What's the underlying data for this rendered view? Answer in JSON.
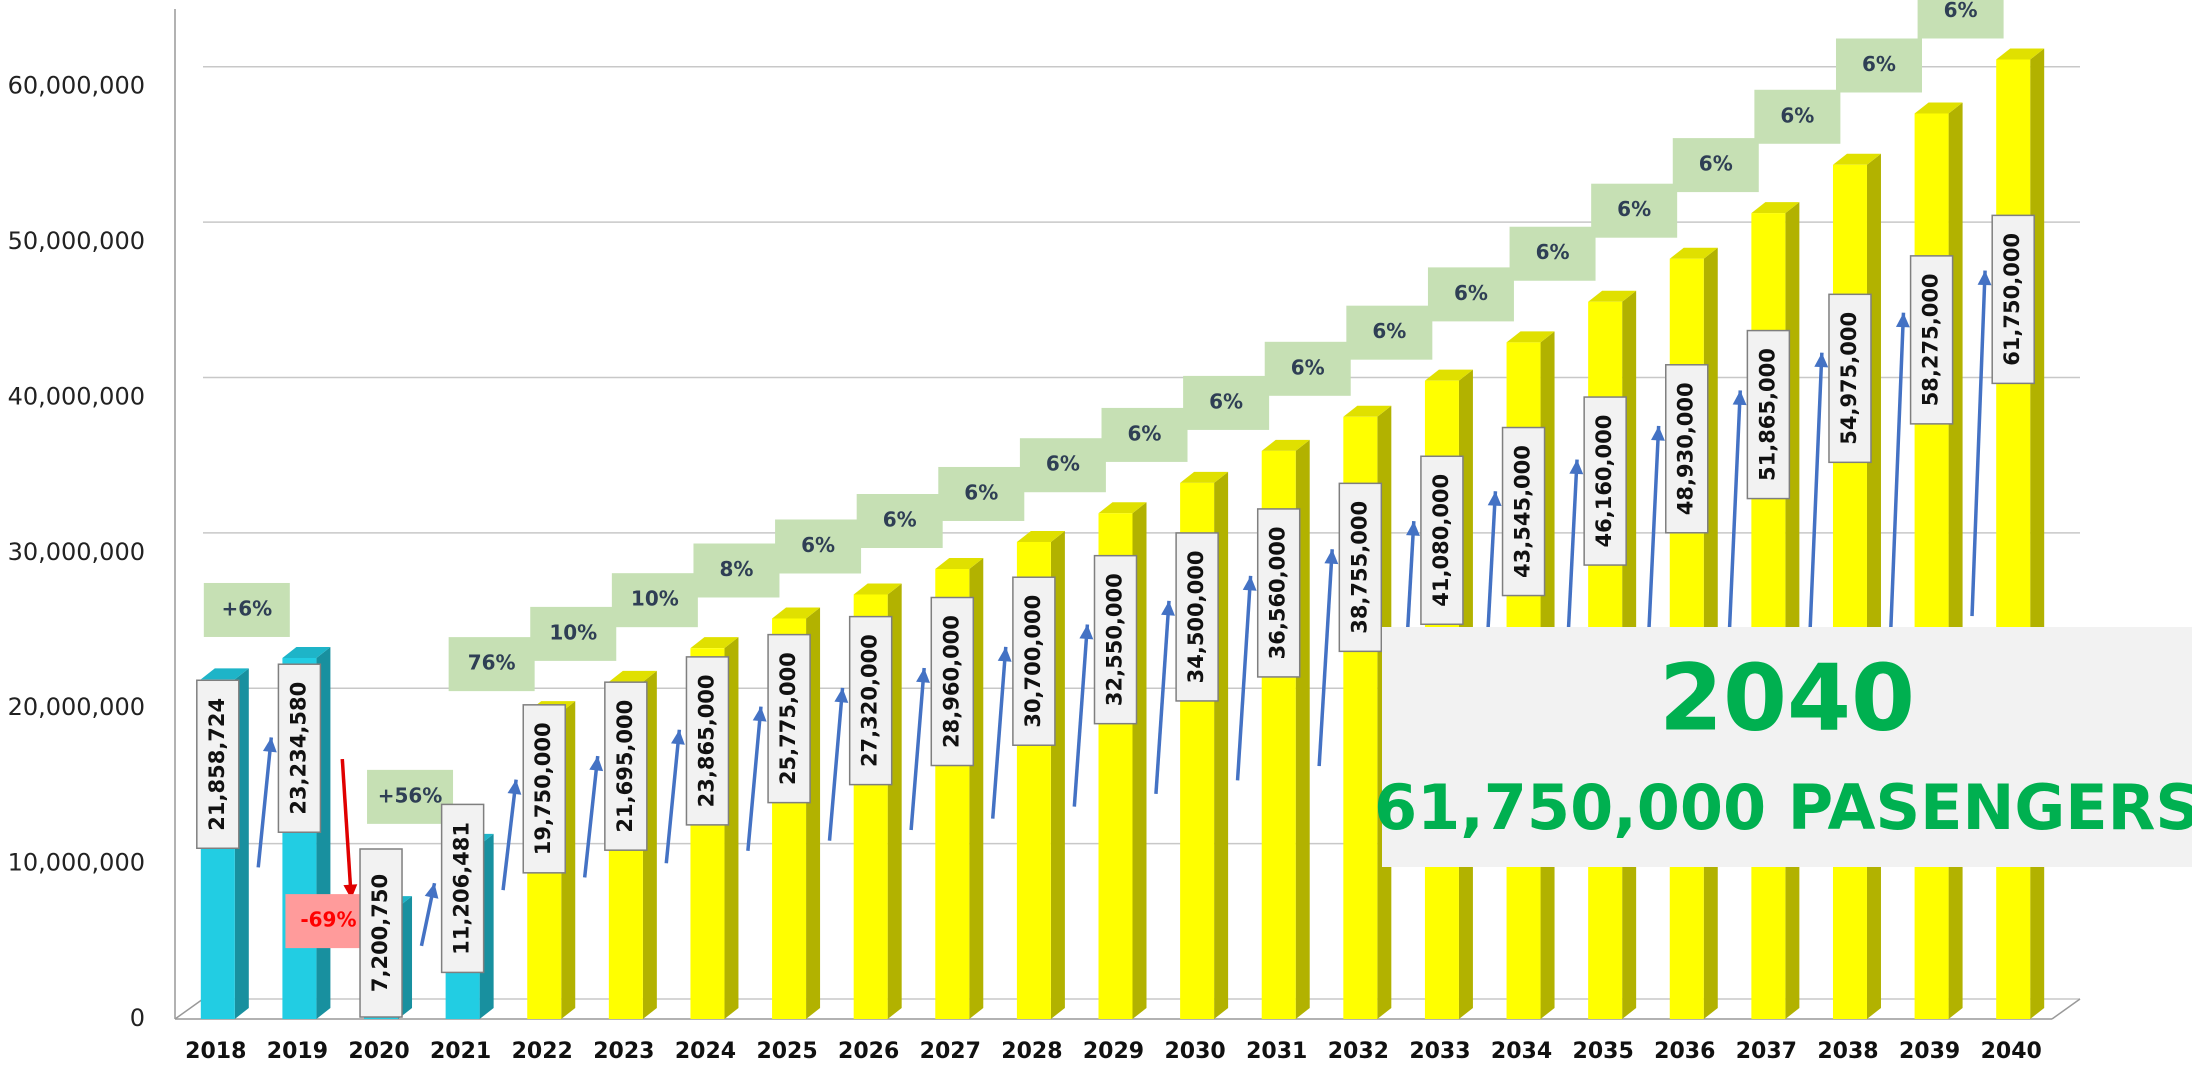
{
  "chart_data": {
    "type": "bar3d",
    "categories": [
      "2018",
      "2019",
      "2020",
      "2021",
      "2022",
      "2023",
      "2024",
      "2025",
      "2026",
      "2027",
      "2028",
      "2029",
      "2030",
      "2031",
      "2032",
      "2033",
      "2034",
      "2035",
      "2036",
      "2037",
      "2038",
      "2039",
      "2040"
    ],
    "values": [
      21858724,
      23234580,
      7200750,
      11206481,
      19750000,
      21695000,
      23865000,
      25775000,
      27320000,
      28960000,
      30700000,
      32550000,
      34500000,
      36560000,
      38755000,
      41080000,
      43545000,
      46160000,
      48930000,
      51865000,
      54975000,
      58275000,
      61750000
    ],
    "value_labels": [
      "21,858,724",
      "23,234,580",
      "7,200,750",
      "11,206,481",
      "19,750,000",
      "21,695,000",
      "23,865,000",
      "25,775,000",
      "27,320,000",
      "28,960,000",
      "30,700,000",
      "32,550,000",
      "34,500,000",
      "36,560,000",
      "38,755,000",
      "41,080,000",
      "43,545,000",
      "46,160,000",
      "48,930,000",
      "51,865,000",
      "54,975,000",
      "58,275,000",
      "61,750,000"
    ],
    "colors": [
      "#22cde3",
      "#22cde3",
      "#22cde3",
      "#22cde3",
      "#ffff00",
      "#ffff00",
      "#ffff00",
      "#ffff00",
      "#ffff00",
      "#ffff00",
      "#ffff00",
      "#ffff00",
      "#ffff00",
      "#ffff00",
      "#ffff00",
      "#ffff00",
      "#ffff00",
      "#ffff00",
      "#ffff00",
      "#ffff00",
      "#ffff00",
      "#ffff00",
      "#ffff00"
    ],
    "growth_labels": [
      "+6%",
      "-69%",
      "+56%",
      "76%",
      "10%",
      "10%",
      "8%",
      "6%",
      "6%",
      "6%",
      "6%",
      "6%",
      "6%",
      "6%",
      "6%",
      "6%",
      "6%",
      "6%",
      "6%",
      "6%",
      "6%",
      "6%"
    ],
    "growth_color": "#c6e0b4",
    "decline_color": "#ff9b9b",
    "ylim": [
      0,
      65000000
    ],
    "yticks": [
      0,
      {
        "value": 10000000,
        "label": "10,000,000"
      },
      {
        "value": 20000000,
        "label": "20,000,000"
      },
      {
        "value": 30000000,
        "label": "30,000,000"
      },
      {
        "value": 40000000,
        "label": "40,000,000"
      },
      {
        "value": 50000000,
        "label": "50,000,000"
      },
      {
        "value": 60000000,
        "label": "60,000,000"
      }
    ],
    "grid": true,
    "callout": {
      "year": "2040",
      "text": "61,750,000 PASENGERS"
    }
  }
}
